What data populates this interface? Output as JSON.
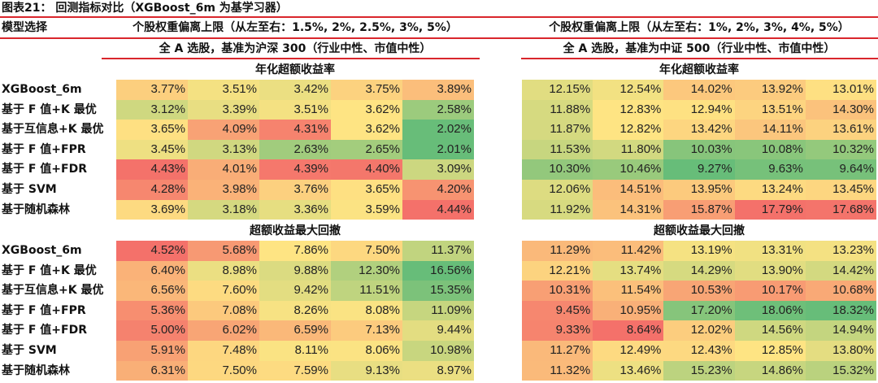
{
  "title": "图表21：  回测指标对比（XGBoost_6m 为基学习器）",
  "model_header": "模型选择",
  "left": {
    "header": "个股权重偏离上限（从左至右：1.5%, 2%, 2.5%, 3%, 5%）",
    "subheader": "全 A 选股，基准为沪深 300（行业中性、市值中性）"
  },
  "right": {
    "header": "个股权重偏离上限（从左至右：1%, 2%, 3%, 4%, 5%）",
    "subheader": "全 A 选股，基准为中证 500（行业中性、市值中性）"
  },
  "models": [
    "XGBoost_6m",
    "基于 F 值+K 最优",
    "基于互信息+K 最优",
    "基于 F 值+FPR",
    "基于 F 值+FDR",
    "基于 SVM",
    "基于随机森林"
  ],
  "sections": [
    {
      "title": "年化超额收益率",
      "color_direction": "high-red-low-green",
      "left": [
        [
          "3.77%",
          "3.51%",
          "3.42%",
          "3.75%",
          "3.89%"
        ],
        [
          "3.12%",
          "3.39%",
          "3.51%",
          "3.62%",
          "2.58%"
        ],
        [
          "3.65%",
          "4.09%",
          "4.31%",
          "3.62%",
          "2.02%"
        ],
        [
          "3.45%",
          "3.13%",
          "2.63%",
          "2.65%",
          "2.01%"
        ],
        [
          "4.43%",
          "4.01%",
          "4.39%",
          "4.40%",
          "3.09%"
        ],
        [
          "4.28%",
          "3.98%",
          "3.76%",
          "3.65%",
          "4.20%"
        ],
        [
          "3.69%",
          "3.18%",
          "3.36%",
          "3.59%",
          "4.44%"
        ]
      ],
      "right": [
        [
          "12.15%",
          "12.54%",
          "14.02%",
          "13.92%",
          "13.01%"
        ],
        [
          "11.88%",
          "12.83%",
          "12.94%",
          "13.51%",
          "14.30%"
        ],
        [
          "11.87%",
          "12.82%",
          "13.42%",
          "14.11%",
          "13.61%"
        ],
        [
          "11.53%",
          "11.80%",
          "10.03%",
          "10.08%",
          "10.32%"
        ],
        [
          "10.30%",
          "10.46%",
          "9.27%",
          "9.63%",
          "9.64%"
        ],
        [
          "12.06%",
          "14.51%",
          "13.95%",
          "13.24%",
          "13.45%"
        ],
        [
          "11.92%",
          "14.31%",
          "15.87%",
          "17.79%",
          "17.68%"
        ]
      ]
    },
    {
      "title": "超额收益最大回撤",
      "color_direction": "low-red-high-green",
      "left": [
        [
          "4.52%",
          "5.68%",
          "7.86%",
          "7.50%",
          "11.37%"
        ],
        [
          "6.40%",
          "8.98%",
          "9.88%",
          "12.30%",
          "16.56%"
        ],
        [
          "6.56%",
          "7.60%",
          "9.42%",
          "11.51%",
          "15.35%"
        ],
        [
          "5.36%",
          "7.08%",
          "8.26%",
          "8.08%",
          "11.09%"
        ],
        [
          "5.00%",
          "6.02%",
          "6.59%",
          "7.13%",
          "9.44%"
        ],
        [
          "5.91%",
          "7.48%",
          "8.11%",
          "8.06%",
          "10.98%"
        ],
        [
          "6.31%",
          "7.50%",
          "7.59%",
          "9.13%",
          "8.97%"
        ]
      ],
      "right": [
        [
          "11.29%",
          "11.42%",
          "13.19%",
          "13.31%",
          "13.23%"
        ],
        [
          "12.21%",
          "13.74%",
          "14.29%",
          "13.90%",
          "14.42%"
        ],
        [
          "10.31%",
          "11.54%",
          "10.53%",
          "10.17%",
          "10.68%"
        ],
        [
          "9.45%",
          "10.95%",
          "17.20%",
          "18.06%",
          "18.32%"
        ],
        [
          "9.33%",
          "8.64%",
          "12.02%",
          "14.56%",
          "14.94%"
        ],
        [
          "11.27%",
          "12.49%",
          "12.43%",
          "12.85%",
          "13.80%"
        ],
        [
          "11.32%",
          "13.46%",
          "15.23%",
          "14.86%",
          "15.32%"
        ]
      ]
    }
  ],
  "colors": {
    "red": "#F4716A",
    "yellow": "#FEE483",
    "green": "#67BD79",
    "rule": "#d9262c"
  }
}
